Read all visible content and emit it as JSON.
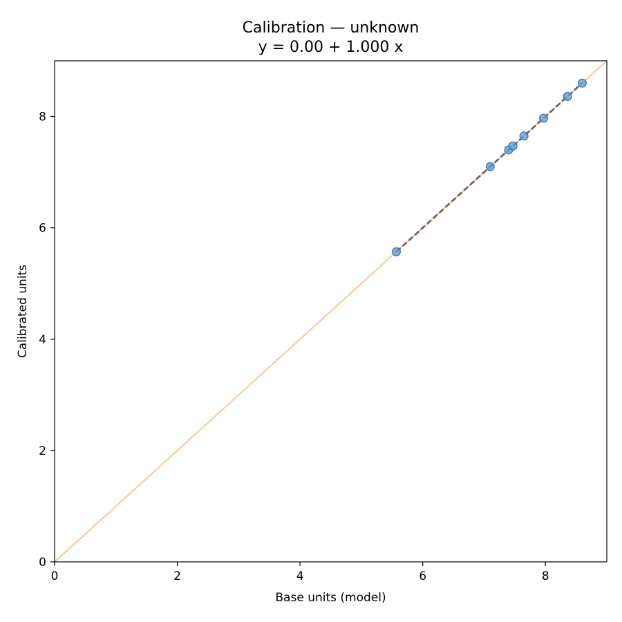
{
  "chart_data": {
    "type": "scatter",
    "title": "Calibration — unknown",
    "subtitle": "y = 0.00 + 1.000 x",
    "xlabel": "Base units (model)",
    "ylabel": "Calibrated units",
    "xlim": [
      0,
      9.0
    ],
    "ylim": [
      0,
      9.0
    ],
    "xticks": [
      0,
      2,
      4,
      6,
      8
    ],
    "yticks": [
      0,
      2,
      4,
      6,
      8
    ],
    "grid": false,
    "points": {
      "x": [
        5.57,
        7.1,
        7.4,
        7.47,
        7.65,
        7.97,
        8.36,
        8.6
      ],
      "y": [
        5.57,
        7.1,
        7.4,
        7.47,
        7.65,
        7.97,
        8.36,
        8.6
      ]
    },
    "reference_line": {
      "x": [
        0,
        9.0
      ],
      "y": [
        0,
        9.0
      ],
      "color": "#fbc99a"
    },
    "fit_line": {
      "intercept": 0.0,
      "slope": 1.0,
      "x_range": [
        5.57,
        8.6
      ],
      "color": "#666666"
    },
    "point_color": "#5b9bd0"
  }
}
